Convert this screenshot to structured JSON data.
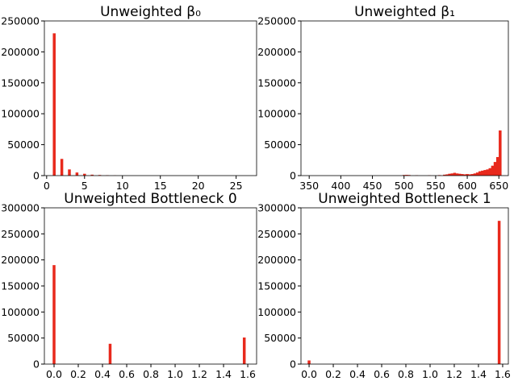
{
  "chart_data": [
    {
      "type": "bar",
      "title": "Unweighted β₀",
      "color": "#e8291c",
      "x": [
        1,
        2,
        3,
        4,
        5,
        6,
        7,
        8,
        9
      ],
      "values": [
        230000,
        27000,
        10000,
        5000,
        3000,
        1500,
        1000,
        600,
        300
      ],
      "xlim": [
        -0.3,
        27.7
      ],
      "xticks": [
        0,
        5,
        10,
        15,
        20,
        25
      ],
      "ylim": [
        0,
        250000
      ],
      "yticks": [
        0,
        50000,
        100000,
        150000,
        200000,
        250000
      ]
    },
    {
      "type": "bar",
      "title": "Unweighted β₁",
      "color": "#e8291c",
      "x": [
        500,
        504,
        508,
        520,
        540,
        556,
        564,
        568,
        572,
        576,
        580,
        584,
        588,
        592,
        596,
        600,
        604,
        608,
        612,
        616,
        620,
        624,
        628,
        632,
        636,
        640,
        644,
        648,
        652
      ],
      "values": [
        1000,
        1200,
        1000,
        500,
        500,
        800,
        1500,
        2000,
        3000,
        3500,
        4500,
        3500,
        3000,
        2500,
        2000,
        2500,
        2000,
        2500,
        3500,
        5000,
        7000,
        8000,
        9000,
        10000,
        12000,
        16000,
        22000,
        30000,
        73000
      ],
      "xlim": [
        337,
        665
      ],
      "xticks": [
        350,
        400,
        450,
        500,
        550,
        600,
        650
      ],
      "ylim": [
        0,
        250000
      ],
      "yticks": [
        0,
        50000,
        100000,
        150000,
        200000,
        250000
      ]
    },
    {
      "type": "bar",
      "title": "Unweighted Bottleneck 0",
      "color": "#e8291c",
      "x": [
        0,
        0.463,
        1.571
      ],
      "values": [
        190000,
        39000,
        51000
      ],
      "xlim": [
        -0.08,
        1.673
      ],
      "xticks": [
        {
          "value": 0,
          "label": "0.0"
        },
        0.2,
        0.4,
        0.6,
        0.8,
        {
          "value": 1,
          "label": "1.0"
        },
        1.2,
        1.4,
        1.6
      ],
      "ylim": [
        0,
        300000
      ],
      "yticks": [
        0,
        50000,
        100000,
        150000,
        200000,
        250000,
        300000
      ]
    },
    {
      "type": "bar",
      "title": "Unweighted Bottleneck 1",
      "color": "#e8291c",
      "x": [
        0,
        1.571
      ],
      "values": [
        7000,
        275000
      ],
      "xlim": [
        -0.067,
        1.647
      ],
      "xticks": [
        {
          "value": 0,
          "label": "0.0"
        },
        0.2,
        0.4,
        0.6,
        0.8,
        {
          "value": 1,
          "label": "1.0"
        },
        1.2,
        1.4,
        1.6
      ],
      "ylim": [
        0,
        300000
      ],
      "yticks": [
        0,
        50000,
        100000,
        150000,
        200000,
        250000,
        300000
      ]
    }
  ]
}
